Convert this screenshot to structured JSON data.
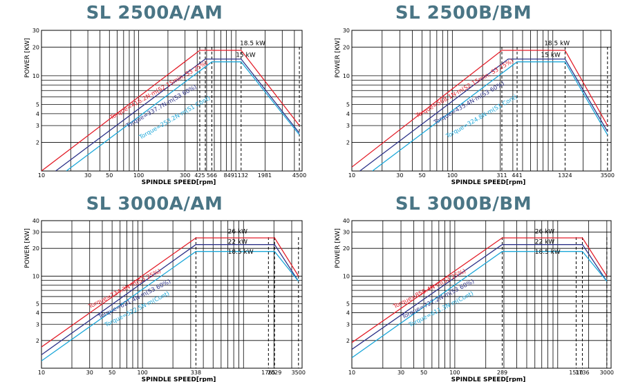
{
  "colors": {
    "title": "#4a7585",
    "red": "#e31f2a",
    "navy": "#2d3289",
    "cyan": "#1ba7d9",
    "grid": "#000000"
  },
  "chart_data": [
    {
      "type": "line",
      "title": "SL 2500A/AM",
      "xlabel": "SPINDLE SPEED[rpm]",
      "ylabel": "POWER [KW]",
      "x_scale": "log",
      "y_scale": "log",
      "xlim": [
        10,
        4800
      ],
      "ylim": [
        1,
        30
      ],
      "x_ticks": [
        {
          "v": 10,
          "t": "10"
        },
        {
          "v": 30,
          "t": "30"
        },
        {
          "v": 50,
          "t": "50"
        },
        {
          "v": 100,
          "t": "100"
        },
        {
          "v": 300,
          "t": "300"
        },
        {
          "v": 425,
          "t": "425"
        },
        {
          "v": 566,
          "t": "566"
        },
        {
          "v": 849,
          "t": "849"
        },
        {
          "v": 1132,
          "t": "1132"
        },
        {
          "v": 1981,
          "t": "1981"
        },
        {
          "v": 4500,
          "t": "4500"
        }
      ],
      "y_ticks": [
        {
          "v": 2,
          "t": "2"
        },
        {
          "v": 3,
          "t": "3"
        },
        {
          "v": 4,
          "t": "4"
        },
        {
          "v": 5,
          "t": "5"
        },
        {
          "v": 10,
          "t": "10"
        },
        {
          "v": 20,
          "t": "20"
        },
        {
          "v": 30,
          "t": "30"
        }
      ],
      "dashed_x": [
        425,
        485,
        566,
        1132,
        4500
      ],
      "series": [
        {
          "color": "red",
          "x": [
            10,
            425,
            1132,
            4500
          ],
          "y": [
            1,
            18.5,
            18.5,
            3
          ]
        },
        {
          "color": "navy",
          "x": [
            14,
            485,
            1132,
            4500
          ],
          "y": [
            1,
            15,
            15,
            2.5
          ]
        },
        {
          "color": "cyan",
          "x": [
            18,
            566,
            1132,
            4500
          ],
          "y": [
            1,
            14,
            14,
            2.4
          ]
        }
      ],
      "labels": [
        {
          "text": "18.5 kW",
          "x": 1100,
          "y": 21,
          "color": "black",
          "rot": 0
        },
        {
          "text": "15 kW",
          "x": 1000,
          "y": 15.8,
          "color": "black",
          "rot": 0
        },
        {
          "text": "Torque=416.2N·m(S2 15min, S3 25%)",
          "x": 165,
          "y": 6.8,
          "color": "red",
          "rot": -30
        },
        {
          "text": "Torque=337.7N·m(S3 60%)",
          "x": 175,
          "y": 4.6,
          "color": "navy",
          "rot": -30
        },
        {
          "text": "Torque=253.2N·m(S1 Cont)",
          "x": 240,
          "y": 3.5,
          "color": "cyan",
          "rot": -30
        }
      ]
    },
    {
      "type": "line",
      "title": "SL 2500B/BM",
      "xlabel": "SPINDLE SPEED[rpm]",
      "ylabel": "POWER [KW]",
      "x_scale": "log",
      "y_scale": "log",
      "xlim": [
        10,
        3800
      ],
      "ylim": [
        1,
        30
      ],
      "x_ticks": [
        {
          "v": 10,
          "t": "10"
        },
        {
          "v": 30,
          "t": "30"
        },
        {
          "v": 50,
          "t": "50"
        },
        {
          "v": 100,
          "t": "100"
        },
        {
          "v": 311,
          "t": "311"
        },
        {
          "v": 441,
          "t": "441"
        },
        {
          "v": 1324,
          "t": "1324"
        },
        {
          "v": 3500,
          "t": "3500"
        }
      ],
      "y_ticks": [
        {
          "v": 2,
          "t": "2"
        },
        {
          "v": 3,
          "t": "3"
        },
        {
          "v": 4,
          "t": "4"
        },
        {
          "v": 5,
          "t": "5"
        },
        {
          "v": 10,
          "t": "10"
        },
        {
          "v": 20,
          "t": "20"
        },
        {
          "v": 30,
          "t": "30"
        }
      ],
      "dashed_x": [
        311,
        441,
        1324,
        3500
      ],
      "series": [
        {
          "color": "red",
          "x": [
            10,
            311,
            1324,
            3500
          ],
          "y": [
            1.1,
            18.5,
            18.5,
            3
          ]
        },
        {
          "color": "navy",
          "x": [
            12,
            360,
            1324,
            3500
          ],
          "y": [
            1,
            15,
            15,
            2.6
          ]
        },
        {
          "color": "cyan",
          "x": [
            16,
            441,
            1324,
            3500
          ],
          "y": [
            1,
            14,
            14,
            2.4
          ]
        }
      ],
      "labels": [
        {
          "text": "18.5 kW",
          "x": 820,
          "y": 21,
          "color": "black",
          "rot": 0
        },
        {
          "text": "15 kW",
          "x": 760,
          "y": 15.8,
          "color": "black",
          "rot": 0
        },
        {
          "text": "Torque=568.1N·m(S2 15min, S3 25%)",
          "x": 135,
          "y": 7.1,
          "color": "red",
          "rot": -30
        },
        {
          "text": "Torque=435.4N·m(S3 60%)",
          "x": 150,
          "y": 5.0,
          "color": "navy",
          "rot": -30
        },
        {
          "text": "Torque=324.8N·m(S1 Cont)",
          "x": 200,
          "y": 3.6,
          "color": "cyan",
          "rot": -30
        }
      ]
    },
    {
      "type": "line",
      "title": "SL 3000A/AM",
      "xlabel": "SPINDLE SPEED[rpm]",
      "ylabel": "POWER [KW]",
      "x_scale": "log",
      "y_scale": "log",
      "xlim": [
        10,
        3800
      ],
      "ylim": [
        1,
        40
      ],
      "x_ticks": [
        {
          "v": 10,
          "t": "10"
        },
        {
          "v": 30,
          "t": "30"
        },
        {
          "v": 50,
          "t": "50"
        },
        {
          "v": 100,
          "t": "100"
        },
        {
          "v": 338,
          "t": "338"
        },
        {
          "v": 1765,
          "t": "1765"
        },
        {
          "v": 2029,
          "t": "2029"
        },
        {
          "v": 3500,
          "t": "3500"
        }
      ],
      "y_ticks": [
        {
          "v": 2,
          "t": "2"
        },
        {
          "v": 3,
          "t": "3"
        },
        {
          "v": 4,
          "t": "4"
        },
        {
          "v": 5,
          "t": "5"
        },
        {
          "v": 10,
          "t": "10"
        },
        {
          "v": 20,
          "t": "20"
        },
        {
          "v": 30,
          "t": "30"
        },
        {
          "v": 40,
          "t": "40"
        }
      ],
      "dashed_x": [
        338,
        1765,
        2029,
        3500
      ],
      "series": [
        {
          "color": "red",
          "x": [
            10,
            338,
            2029,
            3500
          ],
          "y": [
            1.7,
            26,
            26,
            10
          ]
        },
        {
          "color": "navy",
          "x": [
            10,
            338,
            2029,
            3500
          ],
          "y": [
            1.4,
            22,
            22,
            8.8
          ]
        },
        {
          "color": "cyan",
          "x": [
            10,
            338,
            2029,
            3500
          ],
          "y": [
            1.2,
            18.5,
            18.5,
            8.8
          ]
        }
      ],
      "labels": [
        {
          "text": "26 kW",
          "x": 700,
          "y": 29,
          "color": "black",
          "rot": 0
        },
        {
          "text": "22 kW",
          "x": 700,
          "y": 22.5,
          "color": "black",
          "rot": 0
        },
        {
          "text": "18.5 kW",
          "x": 700,
          "y": 17.5,
          "color": "black",
          "rot": 0
        },
        {
          "text": "Torque=734.3N·m(S3 25%)",
          "x": 68,
          "y": 7.0,
          "color": "red",
          "rot": -27
        },
        {
          "text": "Torque=621.4N·m(S3 60%)",
          "x": 85,
          "y": 5.4,
          "color": "navy",
          "rot": -27
        },
        {
          "text": "Torque=522.5N·m(Cont)",
          "x": 90,
          "y": 4.2,
          "color": "cyan",
          "rot": -27
        }
      ]
    },
    {
      "type": "line",
      "title": "SL 3000B/BM",
      "xlabel": "SPINDLE SPEED[rpm]",
      "ylabel": "POWER [KW]",
      "x_scale": "log",
      "y_scale": "log",
      "xlim": [
        10,
        3300
      ],
      "ylim": [
        1,
        40
      ],
      "x_ticks": [
        {
          "v": 10,
          "t": "10"
        },
        {
          "v": 30,
          "t": "30"
        },
        {
          "v": 50,
          "t": "50"
        },
        {
          "v": 100,
          "t": "100"
        },
        {
          "v": 289,
          "t": "289"
        },
        {
          "v": 1510,
          "t": "1510"
        },
        {
          "v": 1736,
          "t": "1736"
        },
        {
          "v": 3000,
          "t": "3000"
        }
      ],
      "y_ticks": [
        {
          "v": 2,
          "t": "2"
        },
        {
          "v": 3,
          "t": "3"
        },
        {
          "v": 4,
          "t": "4"
        },
        {
          "v": 5,
          "t": "5"
        },
        {
          "v": 10,
          "t": "10"
        },
        {
          "v": 20,
          "t": "20"
        },
        {
          "v": 30,
          "t": "30"
        },
        {
          "v": 40,
          "t": "40"
        }
      ],
      "dashed_x": [
        289,
        1510,
        1736,
        3000
      ],
      "series": [
        {
          "color": "red",
          "x": [
            10,
            289,
            1736,
            3000
          ],
          "y": [
            1.9,
            26,
            26,
            10
          ]
        },
        {
          "color": "navy",
          "x": [
            10,
            289,
            1736,
            3000
          ],
          "y": [
            1.6,
            22,
            22,
            8.8
          ]
        },
        {
          "color": "cyan",
          "x": [
            10,
            289,
            1736,
            3000
          ],
          "y": [
            1.3,
            18.5,
            18.5,
            8.8
          ]
        }
      ],
      "labels": [
        {
          "text": "26 kW",
          "x": 600,
          "y": 29,
          "color": "black",
          "rot": 0
        },
        {
          "text": "22 kW",
          "x": 600,
          "y": 22.5,
          "color": "black",
          "rot": 0
        },
        {
          "text": "18.5 kW",
          "x": 600,
          "y": 17.5,
          "color": "black",
          "rot": 0
        },
        {
          "text": "Torque=859.4N·m(S3 25%)",
          "x": 58,
          "y": 7.0,
          "color": "red",
          "rot": -27
        },
        {
          "text": "Torque=727.2N·m(S3 60%)",
          "x": 70,
          "y": 5.4,
          "color": "navy",
          "rot": -27
        },
        {
          "text": "Torque=611.3N·m(Cont)",
          "x": 75,
          "y": 4.2,
          "color": "cyan",
          "rot": -27
        }
      ]
    }
  ]
}
